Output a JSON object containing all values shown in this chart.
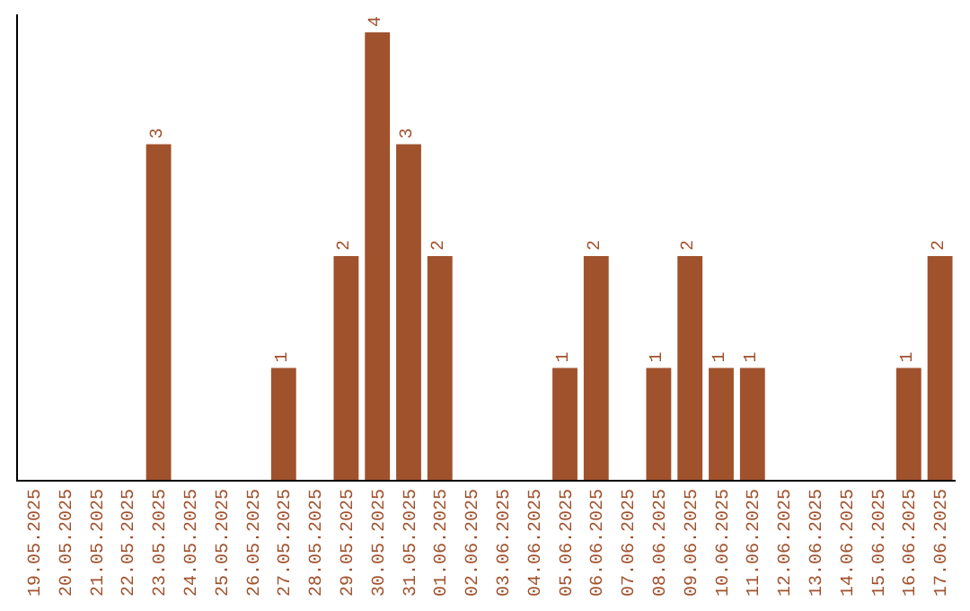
{
  "chart_data": {
    "type": "bar",
    "categories": [
      "19.05.2025",
      "20.05.2025",
      "21.05.2025",
      "22.05.2025",
      "23.05.2025",
      "24.05.2025",
      "25.05.2025",
      "26.05.2025",
      "27.05.2025",
      "28.05.2025",
      "29.05.2025",
      "30.05.2025",
      "31.05.2025",
      "01.06.2025",
      "02.06.2025",
      "03.06.2025",
      "04.06.2025",
      "05.06.2025",
      "06.06.2025",
      "07.06.2025",
      "08.06.2025",
      "09.06.2025",
      "10.06.2025",
      "11.06.2025",
      "12.06.2025",
      "13.06.2025",
      "14.06.2025",
      "15.06.2025",
      "16.06.2025",
      "17.06.2025"
    ],
    "values": [
      0,
      0,
      0,
      0,
      3,
      0,
      0,
      0,
      1,
      0,
      2,
      4,
      3,
      2,
      0,
      0,
      0,
      1,
      2,
      0,
      1,
      2,
      1,
      1,
      0,
      0,
      0,
      0,
      1,
      2
    ],
    "value_labels": [
      null,
      null,
      null,
      null,
      "3",
      null,
      null,
      null,
      "1",
      null,
      "2",
      "4",
      "3",
      "2",
      null,
      null,
      null,
      "1",
      "2",
      null,
      "1",
      "2",
      "1",
      "1",
      null,
      null,
      null,
      null,
      "1",
      "2"
    ],
    "color": "#a0522d",
    "tick_labels": "x"
  }
}
